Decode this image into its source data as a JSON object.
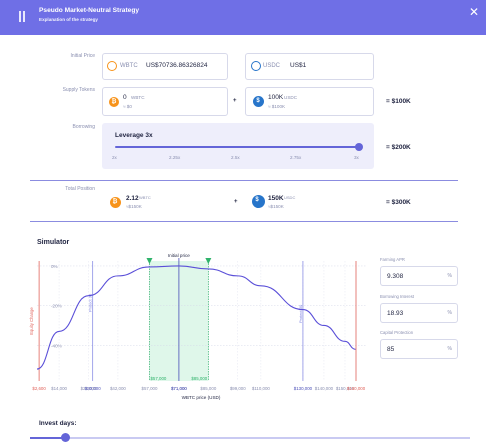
{
  "header": {
    "title": "Pseudo Market-Neutral Strategy",
    "subtitle": "Explanation of the strategy",
    "close_icon": "close-icon"
  },
  "initial_price": {
    "label": "Initial Price",
    "btc": {
      "symbol": "WBTC",
      "value": "US$70736.86326824"
    },
    "usdc": {
      "symbol": "USDC",
      "value": "US$1"
    }
  },
  "supply": {
    "label": "Supply Tokens",
    "btc": {
      "amount": "0",
      "symbol": "WBTC",
      "usd": "≈ $0"
    },
    "usdc": {
      "amount": "100K",
      "symbol": "USDC",
      "usd": "≈ $100K"
    },
    "op": "+",
    "total": "= $100K"
  },
  "borrowing": {
    "label": "Borrowing",
    "leverage_label": "Leverage 3x",
    "leverage_value": 3,
    "ticks": [
      "2x",
      "2.25x",
      "2.5x",
      "2.75x",
      "3x"
    ],
    "total": "= $200K"
  },
  "total_position": {
    "label": "Total Position",
    "btc": {
      "amount": "2.12",
      "symbol": "WBTC",
      "usd": "≈$150K"
    },
    "usdc": {
      "amount": "150K",
      "symbol": "USDC",
      "usd": "≈$150K"
    },
    "op": "+",
    "total": "= $300K"
  },
  "simulator": {
    "title": "Simulator",
    "farming_apr": {
      "label": "Farming APR",
      "value": "9.308",
      "unit": "%"
    },
    "borrowing_interest": {
      "label": "Borrowing Interest",
      "value": "18.93",
      "unit": "%"
    },
    "capital_protection": {
      "label": "Capital Protection",
      "value": "85",
      "unit": "%"
    }
  },
  "chart_data": {
    "type": "line",
    "xlabel": "WBTC price (USD)",
    "ylabel": "Equity Change",
    "y_ticks": [
      "0%",
      "-20%",
      "-40%"
    ],
    "y_tick_values": [
      0,
      -20,
      -40
    ],
    "ylim": [
      -58,
      2.5
    ],
    "x_ticks": [
      "$14,000",
      "$28,000",
      "$42,000",
      "$57,000",
      "$71,000",
      "$85,000",
      "$99,000",
      "$110,000",
      "$130,000",
      "$140,000",
      "$150,000"
    ],
    "x_tick_values": [
      14000,
      28000,
      42000,
      57000,
      71000,
      85000,
      99000,
      110000,
      130000,
      140000,
      150000
    ],
    "xlim": [
      3500,
      160000
    ],
    "liquidation_low": {
      "label": "$2,600",
      "x": 2600
    },
    "liquidation_high": {
      "label": "$160,000",
      "x": 160000
    },
    "protect_low": {
      "label": "Protect 30",
      "x": 30000
    },
    "protect_high": {
      "label": "Protect 30",
      "x": 130000
    },
    "initial_price_label": "Initial price",
    "initial_price_x": 71000,
    "range_low": {
      "label": "$57,000",
      "x": 57000
    },
    "range_high": {
      "label": "$85,000",
      "x": 85000
    },
    "current_x_label": "$71,000",
    "protect_low_tick": "$30,000",
    "protect_high_tick": "$130,000",
    "series": [
      {
        "x": [
          3500,
          14000,
          28000,
          42000,
          57000,
          71000,
          85000,
          99000,
          110000,
          130000,
          140000,
          150000,
          155000
        ],
        "y": [
          -52,
          -33,
          -15,
          -5,
          -0.5,
          0,
          -1.5,
          -5,
          -10,
          -22,
          -30,
          -38,
          -42
        ]
      }
    ]
  },
  "invest": {
    "title": "Invest days:",
    "value_fraction": 0.08
  },
  "colors": {
    "accent": "#6465d8",
    "header": "#6f6fe6",
    "btc": "#f7931a",
    "usdc": "#2775ca",
    "range_fill": "#dff7ea",
    "range_line": "#2fb36b",
    "liquidation": "#e0625a",
    "protect": "#7b7fe0"
  }
}
